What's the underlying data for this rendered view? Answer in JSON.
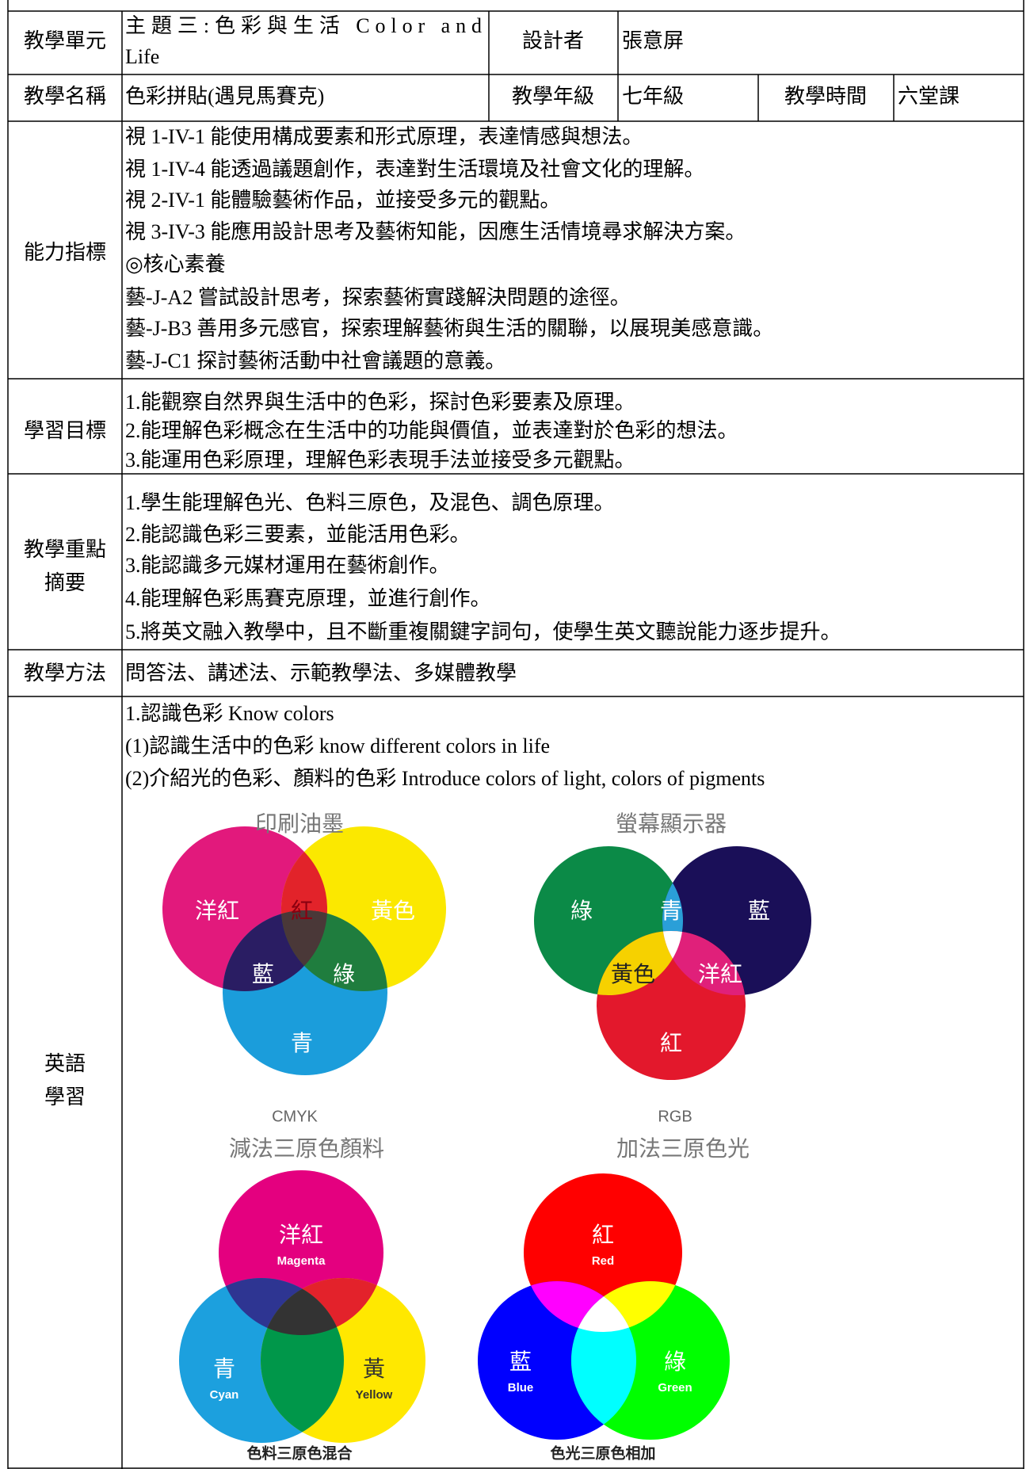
{
  "table": {
    "unit": {
      "label": "教學單元",
      "value_lines": [
        "主題三:色彩與生活 Color and",
        "Life"
      ],
      "designer_label": "設計者",
      "designer": "張意屏"
    },
    "lesson": {
      "label": "教學名稱",
      "value": "色彩拼貼(遇見馬賽克)",
      "grade_label": "教學年級",
      "grade": "七年級",
      "time_label": "教學時間",
      "time": "六堂課"
    },
    "competency": {
      "label": "能力指標",
      "lines": [
        "視 1-IV-1 能使用構成要素和形式原理，表達情感與想法。",
        "視 1-IV-4 能透過議題創作，表達對生活環境及社會文化的理解。",
        "視 2-IV-1 能體驗藝術作品，並接受多元的觀點。",
        "視 3-IV-3 能應用設計思考及藝術知能，因應生活情境尋求解決方案。",
        "◎核心素養",
        "藝-J-A2 嘗試設計思考，探索藝術實踐解決問題的途徑。",
        "藝-J-B3 善用多元感官，探索理解藝術與生活的關聯，以展現美感意識。",
        "藝-J-C1 探討藝術活動中社會議題的意義。"
      ]
    },
    "objectives": {
      "label": "學習目標",
      "lines": [
        "1.能觀察自然界與生活中的色彩，探討色彩要素及原理。",
        "2.能理解色彩概念在生活中的功能與價值，並表達對於色彩的想法。",
        "3.能運用色彩原理，理解色彩表現手法並接受多元觀點。"
      ]
    },
    "key_points": {
      "label_lines": [
        "教學重點",
        "摘要"
      ],
      "lines": [
        "1.學生能理解色光、色料三原色，及混色、調色原理。",
        "2.能認識色彩三要素，並能活用色彩。",
        "3.能認識多元媒材運用在藝術創作。",
        "4.能理解色彩馬賽克原理，並進行創作。",
        "5.將英文融入教學中，且不斷重複關鍵字詞句，使學生英文聽說能力逐步提升。"
      ]
    },
    "methods": {
      "label": "教學方法",
      "value": "問答法、講述法、示範教學法、多媒體教學"
    },
    "english": {
      "label_lines": [
        "英語",
        "學習"
      ],
      "lines": [
        "1.認識色彩 Know colors",
        " (1)認識生活中的色彩 know different colors in life",
        " (2)介紹光的色彩、顏料的色彩 Introduce colors of light, colors of pigments"
      ],
      "diagrams": [
        {
          "title": "印刷油墨",
          "labels": [
            "洋紅",
            "紅",
            "黃色",
            "藍",
            "綠",
            "青"
          ],
          "code": "CMYK",
          "caption": "減法三原色顏料"
        },
        {
          "title": "螢幕顯示器",
          "labels": [
            "綠",
            "青",
            "藍",
            "黃色",
            "洋紅",
            "紅"
          ],
          "code": "RGB",
          "caption": "加法三原色光"
        },
        {
          "labels": [
            "洋紅",
            "Magenta",
            "青",
            "Cyan",
            "黃",
            "Yellow"
          ],
          "caption": "色料三原色混合"
        },
        {
          "labels": [
            "紅",
            "Red",
            "藍",
            "Blue",
            "綠",
            "Green"
          ],
          "caption": "色光三原色相加"
        }
      ]
    }
  }
}
